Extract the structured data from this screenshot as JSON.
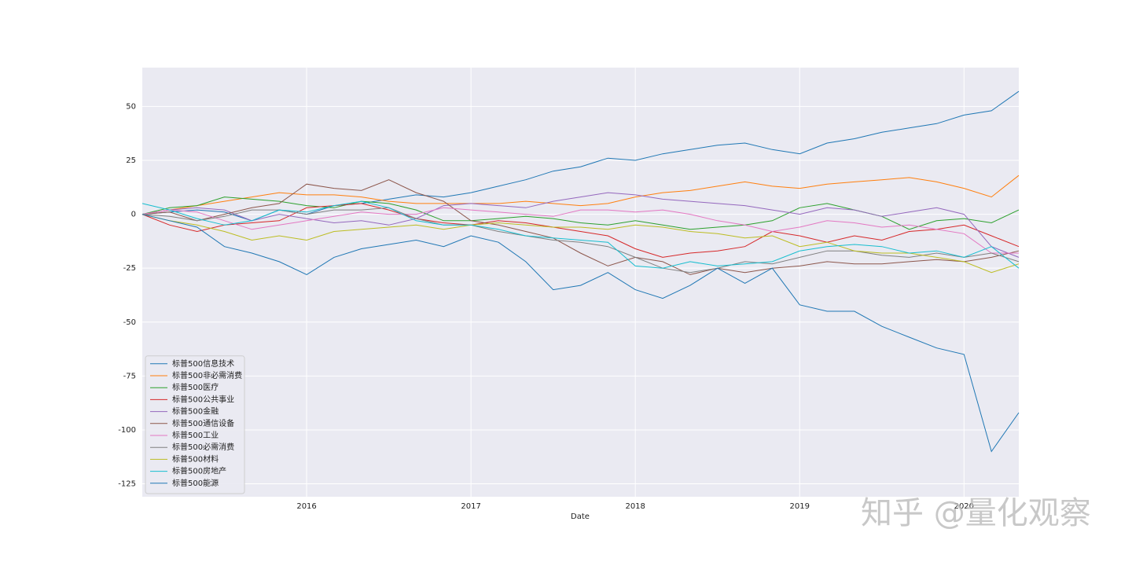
{
  "chart_data": {
    "type": "line",
    "xlabel": "Date",
    "watermark": "知乎 @量化观察",
    "x": [
      "2015-01",
      "2015-03",
      "2015-05",
      "2015-07",
      "2015-09",
      "2015-11",
      "2016-01",
      "2016-03",
      "2016-05",
      "2016-07",
      "2016-09",
      "2016-11",
      "2017-01",
      "2017-03",
      "2017-05",
      "2017-07",
      "2017-09",
      "2017-11",
      "2018-01",
      "2018-03",
      "2018-05",
      "2018-07",
      "2018-09",
      "2018-11",
      "2019-01",
      "2019-03",
      "2019-05",
      "2019-07",
      "2019-09",
      "2019-11",
      "2020-01",
      "2020-03",
      "2020-05"
    ],
    "xlim": [
      "2015-01",
      "2020-05"
    ],
    "xticks": [
      "2016",
      "2017",
      "2018",
      "2019",
      "2020"
    ],
    "ylim": [
      -131,
      68
    ],
    "yticks": [
      50,
      25,
      0,
      -25,
      -50,
      -75,
      -100,
      -125
    ],
    "grid": true,
    "legend": "lower left",
    "series": [
      {
        "name": "标普500信息技术",
        "color": "#1f77b4",
        "values": [
          0,
          1,
          2,
          1,
          -3,
          2,
          0,
          4,
          5,
          7,
          9,
          8,
          10,
          13,
          16,
          20,
          22,
          26,
          25,
          28,
          30,
          32,
          33,
          30,
          28,
          33,
          35,
          38,
          40,
          42,
          46,
          48,
          57
        ]
      },
      {
        "name": "标普500非必需消费",
        "color": "#ff7f0e",
        "values": [
          0,
          2,
          4,
          6,
          8,
          10,
          9,
          9,
          8,
          6,
          5,
          5,
          5,
          5,
          6,
          5,
          4,
          5,
          8,
          10,
          11,
          13,
          15,
          13,
          12,
          14,
          15,
          16,
          17,
          15,
          12,
          8,
          18
        ]
      },
      {
        "name": "标普500医疗",
        "color": "#2ca02c",
        "values": [
          0,
          3,
          4,
          8,
          7,
          6,
          4,
          3,
          6,
          5,
          2,
          -3,
          -3,
          -2,
          -1,
          -2,
          -4,
          -5,
          -3,
          -5,
          -7,
          -6,
          -5,
          -3,
          3,
          5,
          2,
          -1,
          -7,
          -3,
          -2,
          -4,
          2
        ]
      },
      {
        "name": "标普500公共事业",
        "color": "#d62728",
        "values": [
          0,
          -5,
          -8,
          -5,
          -4,
          -3,
          3,
          4,
          5,
          2,
          -2,
          -4,
          -5,
          -3,
          -4,
          -6,
          -8,
          -10,
          -16,
          -20,
          -18,
          -17,
          -15,
          -8,
          -10,
          -13,
          -10,
          -12,
          -8,
          -7,
          -5,
          -10,
          -15
        ]
      },
      {
        "name": "标普500金融",
        "color": "#9467bd",
        "values": [
          0,
          2,
          3,
          2,
          -3,
          0,
          -2,
          -4,
          -3,
          -5,
          -2,
          4,
          5,
          4,
          3,
          6,
          8,
          10,
          9,
          7,
          6,
          5,
          4,
          2,
          0,
          3,
          2,
          -1,
          1,
          3,
          0,
          -15,
          -20
        ]
      },
      {
        "name": "标普500通信设备",
        "color": "#8c564b",
        "values": [
          0,
          1,
          -3,
          0,
          3,
          5,
          14,
          12,
          11,
          16,
          10,
          6,
          -3,
          -5,
          -8,
          -11,
          -18,
          -24,
          -20,
          -22,
          -28,
          -25,
          -27,
          -25,
          -24,
          -22,
          -23,
          -23,
          -22,
          -21,
          -22,
          -20,
          -17
        ]
      },
      {
        "name": "标普500工业",
        "color": "#e377c2",
        "values": [
          0,
          2,
          1,
          -3,
          -7,
          -5,
          -3,
          -1,
          1,
          0,
          0,
          3,
          2,
          1,
          0,
          -1,
          2,
          2,
          1,
          2,
          0,
          -3,
          -5,
          -8,
          -6,
          -3,
          -4,
          -6,
          -5,
          -7,
          -9,
          -18,
          -18
        ]
      },
      {
        "name": "标普500必需消费",
        "color": "#7f7f7f",
        "values": [
          0,
          -1,
          -3,
          -1,
          2,
          2,
          0,
          2,
          2,
          3,
          -2,
          -5,
          -5,
          -8,
          -10,
          -12,
          -13,
          -15,
          -20,
          -25,
          -27,
          -25,
          -22,
          -23,
          -20,
          -17,
          -17,
          -19,
          -20,
          -18,
          -20,
          -18,
          -22
        ]
      },
      {
        "name": "标普500材料",
        "color": "#bcbd22",
        "values": [
          0,
          -3,
          -5,
          -8,
          -12,
          -10,
          -12,
          -8,
          -7,
          -6,
          -5,
          -7,
          -5,
          -4,
          -5,
          -6,
          -6,
          -7,
          -5,
          -6,
          -8,
          -9,
          -11,
          -10,
          -15,
          -13,
          -17,
          -18,
          -18,
          -20,
          -22,
          -27,
          -23
        ]
      },
      {
        "name": "标普500房地产",
        "color": "#17becf",
        "values": [
          5,
          2,
          -2,
          -5,
          -3,
          2,
          1,
          4,
          6,
          3,
          -3,
          -5,
          -5,
          -7,
          -10,
          -11,
          -12,
          -13,
          -24,
          -25,
          -22,
          -24,
          -23,
          -22,
          -17,
          -15,
          -14,
          -15,
          -18,
          -17,
          -20,
          -15,
          -25
        ]
      },
      {
        "name": "标普500能源",
        "color": "#1f77b4",
        "values": [
          0,
          -3,
          -6,
          -15,
          -18,
          -22,
          -28,
          -20,
          -16,
          -14,
          -12,
          -15,
          -10,
          -13,
          -22,
          -35,
          -33,
          -27,
          -35,
          -39,
          -33,
          -25,
          -32,
          -25,
          -42,
          -45,
          -45,
          -52,
          -57,
          -62,
          -65,
          -110,
          -92
        ]
      }
    ]
  }
}
